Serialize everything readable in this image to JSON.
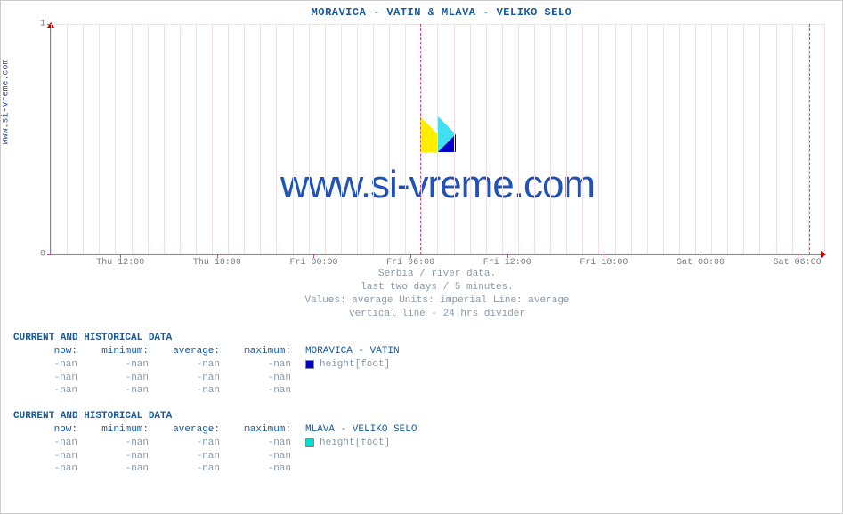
{
  "site_url": "www.si-vreme.com",
  "title": "MORAVICA -  VATIN &  MLAVA -  VELIKO SELO",
  "watermark": "www.si-vreme.com",
  "chart": {
    "type": "line",
    "background_color": "#ffffff",
    "grid_color": "#f4dfe8",
    "axis_color": "#888888",
    "divider_color": "#c44b8f",
    "ylim": [
      0,
      1
    ],
    "yticks": [
      0,
      1
    ],
    "xticks": [
      "Thu 12:00",
      "Thu 18:00",
      "Fri 00:00",
      "Fri 06:00",
      "Fri 12:00",
      "Fri 18:00",
      "Sat 00:00",
      "Sat 06:00"
    ],
    "xtick_positions_pct": [
      9,
      21.5,
      34,
      46.5,
      59,
      71.5,
      84,
      96.5
    ],
    "divider_positions_pct": [
      47.8,
      98.0
    ],
    "minor_xtick_step_pct": 2.083,
    "series": [
      {
        "name": "MORAVICA -  VATIN",
        "color": "#0000cc",
        "values": []
      },
      {
        "name": "MLAVA -  VELIKO SELO",
        "color": "#00e0d0",
        "values": []
      }
    ]
  },
  "caption_lines": [
    "Serbia / river data.",
    "last two days / 5 minutes.",
    "Values: average  Units: imperial  Line: average",
    "vertical line - 24 hrs  divider"
  ],
  "data_block_header": "CURRENT AND HISTORICAL DATA",
  "data_columns": [
    "now:",
    "minimum:",
    "average:",
    "maximum:"
  ],
  "metric_label": "height[foot]",
  "data_blocks": [
    {
      "series_index": 0,
      "rows": [
        [
          "-nan",
          "-nan",
          "-nan",
          "-nan"
        ],
        [
          "-nan",
          "-nan",
          "-nan",
          "-nan"
        ],
        [
          "-nan",
          "-nan",
          "-nan",
          "-nan"
        ]
      ]
    },
    {
      "series_index": 1,
      "rows": [
        [
          "-nan",
          "-nan",
          "-nan",
          "-nan"
        ],
        [
          "-nan",
          "-nan",
          "-nan",
          "-nan"
        ],
        [
          "-nan",
          "-nan",
          "-nan",
          "-nan"
        ]
      ]
    }
  ],
  "colors": {
    "title": "#1559a0",
    "caption": "#8a9aa8",
    "value": "#8a9aa8",
    "watermark": "#2052b8"
  },
  "typography": {
    "mono_family": "Courier New",
    "title_fontsize": 12,
    "body_fontsize": 11,
    "watermark_fontsize": 44,
    "watermark_family": "Arial"
  }
}
